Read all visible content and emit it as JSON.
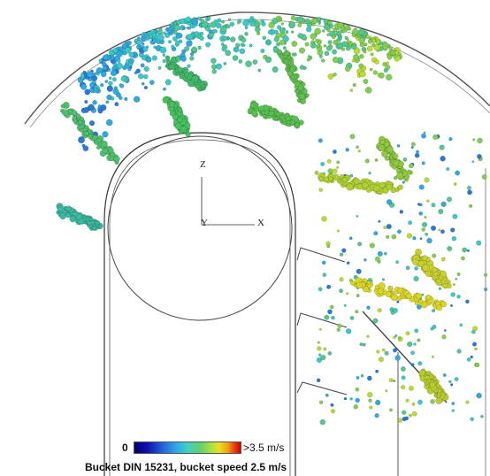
{
  "figure": {
    "axes": {
      "z": "Z",
      "y": "Y",
      "x": "X"
    },
    "legend": {
      "min_label": "0",
      "max_label": ">3.5 m/s"
    },
    "caption": "Bucket DIN 15231, bucket speed 2.5 m/s"
  }
}
